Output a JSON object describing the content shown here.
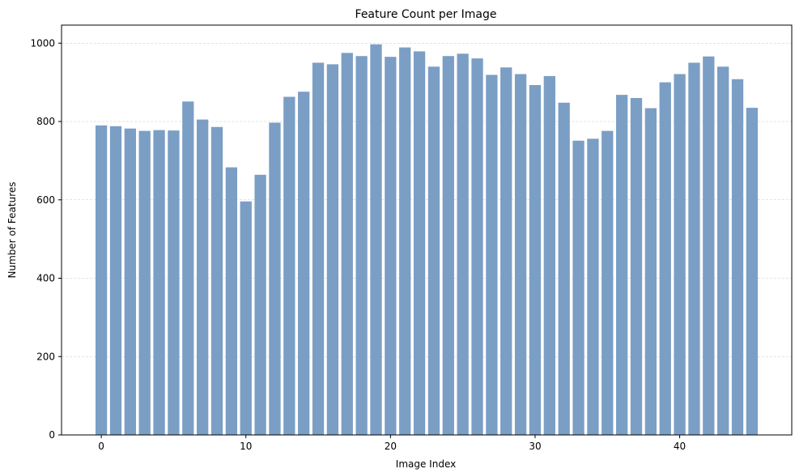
{
  "chart_data": {
    "type": "bar",
    "title": "Feature Count per Image",
    "xlabel": "Image Index",
    "ylabel": "Number of Features",
    "x": [
      0,
      1,
      2,
      3,
      4,
      5,
      6,
      7,
      8,
      9,
      10,
      11,
      12,
      13,
      14,
      15,
      16,
      17,
      18,
      19,
      20,
      21,
      22,
      23,
      24,
      25,
      26,
      27,
      28,
      29,
      30,
      31,
      32,
      33,
      34,
      35,
      36,
      37,
      38,
      39,
      40,
      41,
      42,
      43,
      44,
      45
    ],
    "values": [
      790,
      788,
      782,
      776,
      778,
      777,
      851,
      805,
      786,
      683,
      596,
      664,
      797,
      863,
      876,
      950,
      946,
      975,
      967,
      997,
      965,
      989,
      979,
      940,
      967,
      973,
      961,
      919,
      938,
      921,
      893,
      916,
      848,
      751,
      756,
      776,
      868,
      860,
      834,
      900,
      921,
      950,
      966,
      940,
      908,
      835
    ],
    "xlim": [
      -2.75,
      47.75
    ],
    "ylim": [
      0,
      1046
    ],
    "xticks": [
      0,
      10,
      20,
      30,
      40
    ],
    "yticks": [
      0,
      200,
      400,
      600,
      800,
      1000
    ],
    "bar_width": 0.8,
    "grid": "y-dashed",
    "bar_color": "#7b9ec5"
  }
}
